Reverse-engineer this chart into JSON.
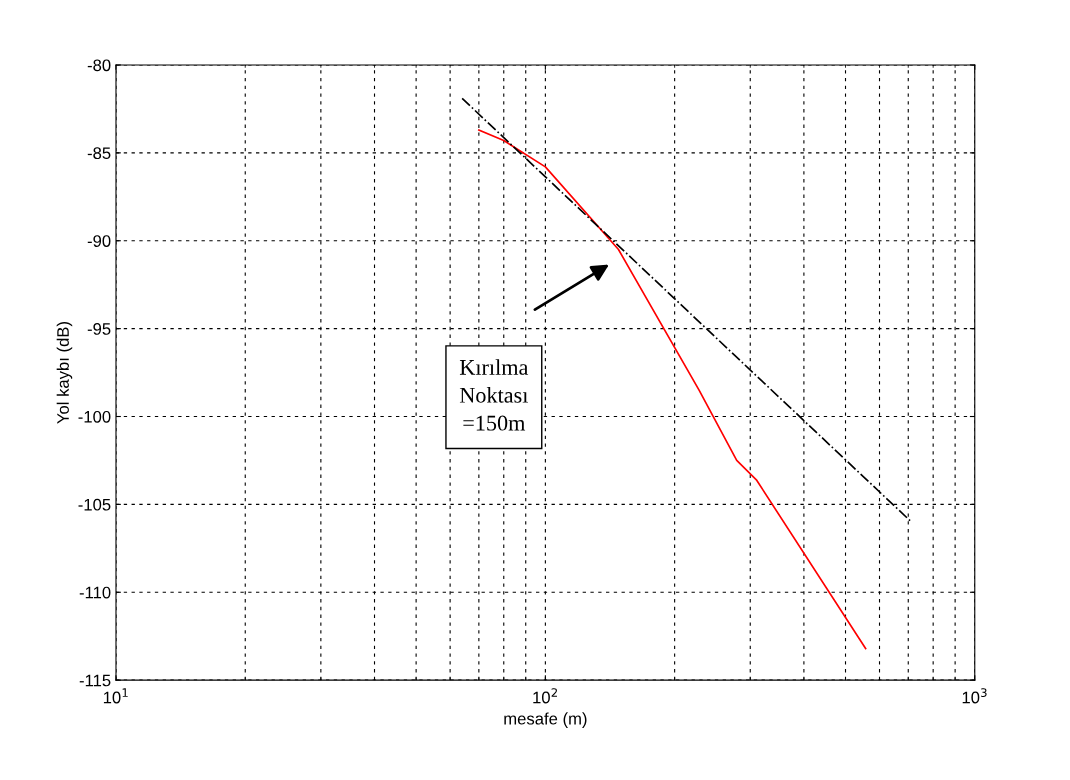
{
  "chart_data": {
    "type": "line",
    "xlabel": "mesafe (m)",
    "ylabel": "Yol kaybı (dB)",
    "log": "x",
    "xlim": [
      10,
      1000
    ],
    "xticks": [
      {
        "value": 10,
        "label": "10$^{1}$"
      },
      {
        "value": 100,
        "label": "10$^{2}$"
      },
      {
        "value": 1000,
        "label": "10$^{3}$"
      }
    ],
    "ylim": [
      -115,
      -80
    ],
    "yticks": [
      -115,
      -110,
      -105,
      -100,
      -95,
      -90,
      -85,
      -80
    ],
    "grid": true,
    "series": [
      {
        "color": "#ff0000",
        "line_style": "solid",
        "x": [
          70,
          80,
          100,
          148,
          228,
          279,
          310,
          557
        ],
        "values": [
          -83.7,
          -84.3,
          -85.8,
          -90.5,
          -98.5,
          -102.5,
          -103.6,
          -113.2
        ]
      },
      {
        "color": "#000000",
        "line_style": "dashdot",
        "x": [
          64,
          712
        ],
        "values": [
          -81.9,
          -106.0
        ]
      }
    ],
    "annotations": [
      "Kırılma\nNoktası\n=150m"
    ]
  }
}
